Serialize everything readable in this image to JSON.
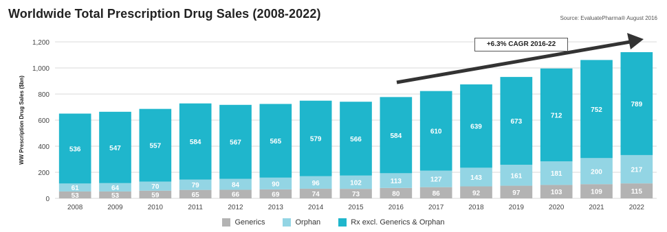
{
  "title": "Worldwide Total Prescription Drug Sales (2008-2022)",
  "source": "Source: EvaluatePharma® August 2016",
  "annotation": "+6.3% CAGR 2016-22",
  "colors": {
    "generics": "#b3b3b3",
    "orphan": "#93d5e4",
    "rx": "#1fb6cc",
    "arrow": "#333333",
    "grid": "#d9d9d9"
  },
  "chart_data": {
    "type": "bar",
    "stacked": true,
    "categories": [
      "2008",
      "2009",
      "2010",
      "2011",
      "2012",
      "2013",
      "2014",
      "2015",
      "2016",
      "2017",
      "2018",
      "2019",
      "2020",
      "2021",
      "2022"
    ],
    "series": [
      {
        "name": "Generics",
        "values": [
          53,
          53,
          59,
          65,
          66,
          69,
          74,
          73,
          80,
          86,
          92,
          97,
          103,
          109,
          115
        ]
      },
      {
        "name": "Orphan",
        "values": [
          61,
          64,
          70,
          79,
          84,
          90,
          96,
          102,
          113,
          127,
          143,
          161,
          181,
          200,
          217
        ]
      },
      {
        "name": "Rx excl. Generics & Orphan",
        "values": [
          536,
          547,
          557,
          584,
          567,
          565,
          579,
          566,
          584,
          610,
          639,
          673,
          712,
          752,
          789
        ]
      }
    ],
    "ylabel": "WW Prescription Drug Sales ($bn)",
    "yticks": [
      "0",
      "200",
      "400",
      "600",
      "800",
      "1,000",
      "1,200"
    ],
    "ylim": [
      0,
      1200
    ],
    "grid": true,
    "legend_position": "bottom"
  }
}
